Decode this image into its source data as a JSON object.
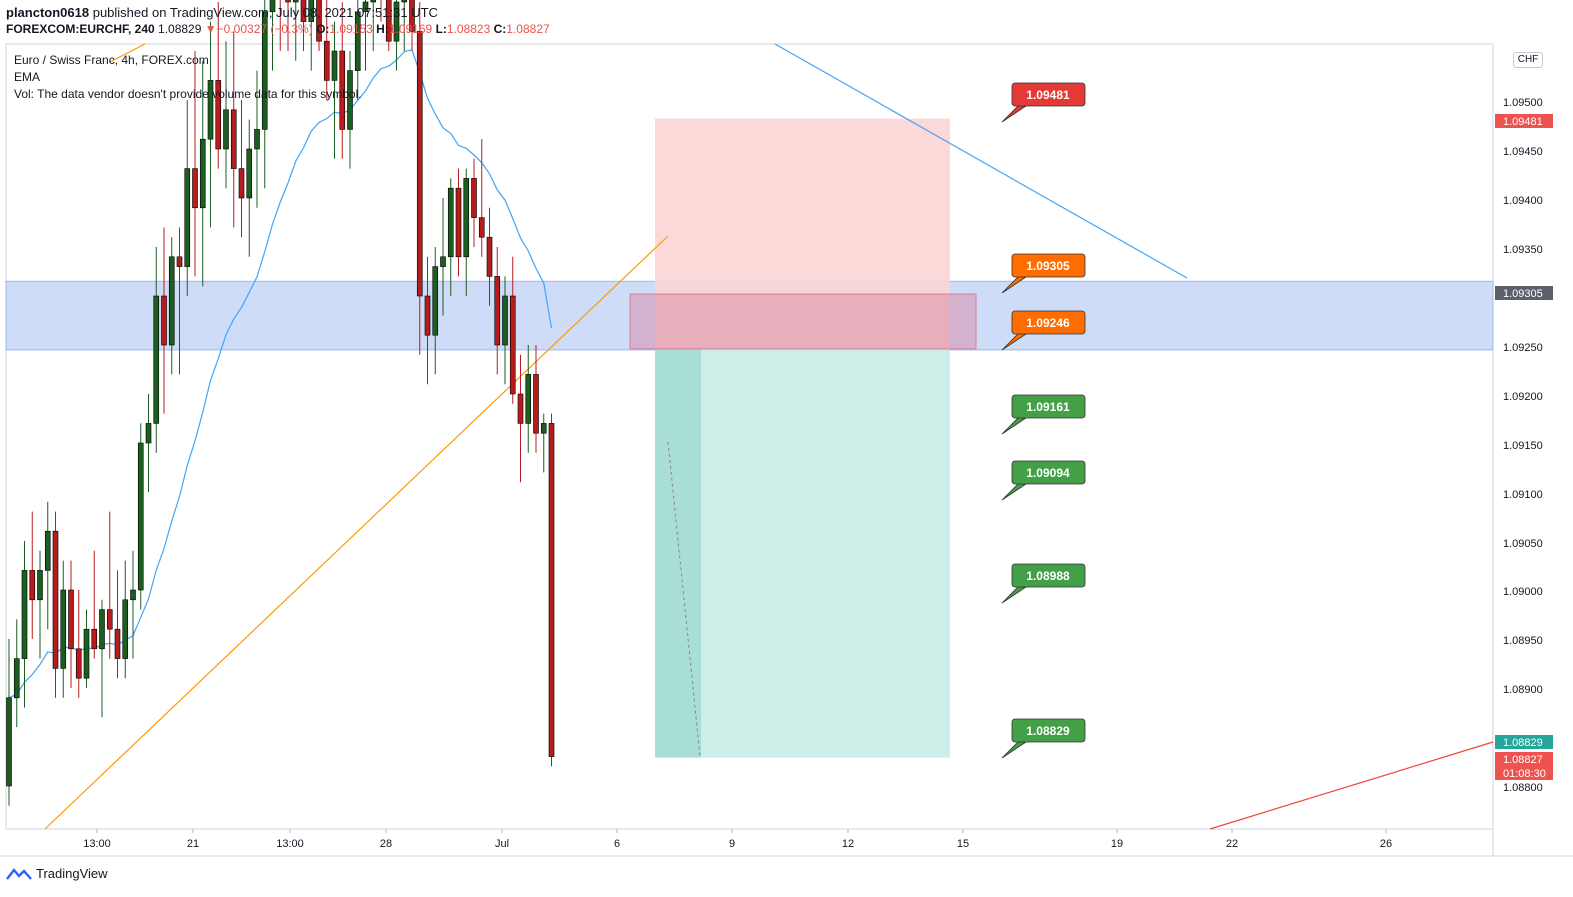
{
  "header": {
    "line1_user": "plancton0618",
    "line1_rest": "published on TradingView.com, July 08, 2021 07:51:31 UTC",
    "symbol": "FOREXCOM:EURCHF, 240",
    "last": "1.08829",
    "change_arrow": "▼",
    "change": "−0.00327 (−0.3%)",
    "o_label": "O:",
    "o_value": "1.09153",
    "h_label": "H:",
    "h_value": "1.09169",
    "l_label": "L:",
    "l_value": "1.08823",
    "c_label": "C:",
    "c_value": "1.08827"
  },
  "legend": {
    "line1": "Euro / Swiss Franc, 4h, FOREX.com",
    "line2": "EMA",
    "line3": "Vol: The data vendor doesn't provide volume data for this symbol."
  },
  "currency_button": "CHF",
  "footer": {
    "brand": "TradingView"
  },
  "colors": {
    "up": "#26a69a",
    "down": "#ef5350",
    "candle_up": "#1b5e20",
    "candle_down": "#b71c1c",
    "ema": "#42a5f5",
    "zone": "#b9cdf5",
    "stop_zone": "#fbd5d5",
    "target_zone": "#c9ebe7",
    "label_red": "#e53935",
    "label_orange": "#ff6d00",
    "label_green": "#43a047"
  },
  "chart_data": {
    "type": "candlestick",
    "title": "Euro / Swiss Franc, 4h, FOREX.com",
    "symbol": "FOREXCOM:EURCHF",
    "timeframe": "240",
    "y_ticks": [
      "1.09500",
      "1.09450",
      "1.09400",
      "1.09350",
      "1.09250",
      "1.09200",
      "1.09150",
      "1.09100",
      "1.09050",
      "1.09000",
      "1.08950",
      "1.08900",
      "1.08800"
    ],
    "x_ticks": [
      "13:00",
      "21",
      "13:00",
      "28",
      "Jul",
      "6",
      "9",
      "12",
      "15",
      "19",
      "22",
      "26"
    ],
    "ylim": [
      1.0876,
      1.0956
    ],
    "price_tags": [
      {
        "value": "1.09481",
        "color": "#ef5350"
      },
      {
        "value": "1.09305",
        "color": "#5d606b"
      },
      {
        "value": "1.08829",
        "color": "#26a69a"
      },
      {
        "value": "1.08827",
        "color": "#ef5350"
      },
      {
        "value": "01:08:30",
        "color": "#ef5350"
      }
    ],
    "price_labels": [
      {
        "value": "1.09481",
        "color": "#e53935"
      },
      {
        "value": "1.09305",
        "color": "#ff6d00"
      },
      {
        "value": "1.09246",
        "color": "#ff6d00"
      },
      {
        "value": "1.09161",
        "color": "#43a047"
      },
      {
        "value": "1.09094",
        "color": "#43a047"
      },
      {
        "value": "1.08988",
        "color": "#43a047"
      },
      {
        "value": "1.08829",
        "color": "#43a047"
      }
    ],
    "zones": [
      {
        "type": "support-resistance",
        "from": 1.09245,
        "to": 1.09315
      },
      {
        "type": "stop-loss",
        "from": 1.09246,
        "to": 1.09481
      },
      {
        "type": "take-profit",
        "from": 1.08829,
        "to": 1.09246
      }
    ],
    "series": [
      {
        "name": "EMA"
      }
    ],
    "candles": [
      [
        1.088,
        1.0895,
        1.0878,
        1.0889
      ],
      [
        1.0889,
        1.0897,
        1.0886,
        1.0893
      ],
      [
        1.0893,
        1.0905,
        1.0888,
        1.0902
      ],
      [
        1.0902,
        1.0908,
        1.0895,
        1.0899
      ],
      [
        1.0899,
        1.0904,
        1.0893,
        1.0902
      ],
      [
        1.0902,
        1.0909,
        1.0896,
        1.0906
      ],
      [
        1.0906,
        1.0908,
        1.0889,
        1.0892
      ],
      [
        1.0892,
        1.0903,
        1.0889,
        1.09
      ],
      [
        1.09,
        1.0903,
        1.089,
        1.0894
      ],
      [
        1.0894,
        1.09,
        1.0889,
        1.0891
      ],
      [
        1.0891,
        1.0898,
        1.089,
        1.0896
      ],
      [
        1.0896,
        1.0904,
        1.0893,
        1.0894
      ],
      [
        1.0894,
        1.0899,
        1.0887,
        1.0898
      ],
      [
        1.0898,
        1.0908,
        1.0893,
        1.0896
      ],
      [
        1.0896,
        1.0902,
        1.0891,
        1.0893
      ],
      [
        1.0893,
        1.0903,
        1.0891,
        1.0899
      ],
      [
        1.0899,
        1.0904,
        1.0893,
        1.09
      ],
      [
        1.09,
        1.0917,
        1.0898,
        1.0915
      ],
      [
        1.0915,
        1.092,
        1.091,
        1.0917
      ],
      [
        1.0917,
        1.0935,
        1.0914,
        1.093
      ],
      [
        1.093,
        1.0937,
        1.0918,
        1.0925
      ],
      [
        1.0925,
        1.0936,
        1.0922,
        1.0934
      ],
      [
        1.0934,
        1.0937,
        1.0922,
        1.0933
      ],
      [
        1.0933,
        1.095,
        1.093,
        1.0943
      ],
      [
        1.0943,
        1.0955,
        1.0932,
        1.0939
      ],
      [
        1.0939,
        1.0954,
        1.0931,
        1.0946
      ],
      [
        1.0946,
        1.0958,
        1.0937,
        1.0952
      ],
      [
        1.0952,
        1.096,
        1.0943,
        1.0945
      ],
      [
        1.0945,
        1.0956,
        1.0941,
        1.0949
      ],
      [
        1.0949,
        1.0957,
        1.0937,
        1.0943
      ],
      [
        1.0943,
        1.095,
        1.0936,
        1.094
      ],
      [
        1.094,
        1.0948,
        1.0934,
        1.0945
      ],
      [
        1.0945,
        1.0953,
        1.0939,
        1.0947
      ],
      [
        1.0947,
        1.0962,
        1.0941,
        1.0959
      ],
      [
        1.0959,
        1.0968,
        1.0953,
        1.0964
      ],
      [
        1.0964,
        1.0969,
        1.0955,
        1.0961
      ],
      [
        1.0961,
        1.0968,
        1.0955,
        1.096
      ],
      [
        1.096,
        1.097,
        1.0954,
        1.0965
      ],
      [
        1.0965,
        1.0968,
        1.0955,
        1.0958
      ],
      [
        1.0958,
        1.0966,
        1.0953,
        1.0963
      ],
      [
        1.0963,
        1.0968,
        1.0955,
        1.0956
      ],
      [
        1.0956,
        1.0963,
        1.095,
        1.0952
      ],
      [
        1.0952,
        1.0958,
        1.0944,
        1.0955
      ],
      [
        1.0955,
        1.096,
        1.0944,
        1.0947
      ],
      [
        1.0947,
        1.0955,
        1.0943,
        1.0953
      ],
      [
        1.0953,
        1.0962,
        1.095,
        1.0959
      ],
      [
        1.0959,
        1.0966,
        1.0953,
        1.096
      ],
      [
        1.096,
        1.0968,
        1.0955,
        1.0965
      ],
      [
        1.0965,
        1.0968,
        1.0958,
        1.0962
      ],
      [
        1.0962,
        1.0966,
        1.0955,
        1.0956
      ],
      [
        1.0956,
        1.0962,
        1.0953,
        1.096
      ],
      [
        1.096,
        1.0966,
        1.0955,
        1.0963
      ],
      [
        1.0963,
        1.0967,
        1.0955,
        1.0957
      ],
      [
        1.0957,
        1.096,
        1.0924,
        1.093
      ],
      [
        1.093,
        1.0934,
        1.0921,
        1.0926
      ],
      [
        1.0926,
        1.0935,
        1.0922,
        1.0933
      ],
      [
        1.0933,
        1.094,
        1.0928,
        1.0934
      ],
      [
        1.0934,
        1.0942,
        1.093,
        1.0941
      ],
      [
        1.0941,
        1.0943,
        1.0932,
        1.0934
      ],
      [
        1.0934,
        1.0943,
        1.093,
        1.0942
      ],
      [
        1.0942,
        1.0944,
        1.0935,
        1.0938
      ],
      [
        1.0938,
        1.0946,
        1.0934,
        1.0936
      ],
      [
        1.0936,
        1.0939,
        1.0929,
        1.0932
      ],
      [
        1.0932,
        1.0935,
        1.0922,
        1.0925
      ],
      [
        1.0925,
        1.0932,
        1.0921,
        1.093
      ],
      [
        1.093,
        1.0934,
        1.0919,
        1.092
      ],
      [
        1.092,
        1.0924,
        1.0911,
        1.0917
      ],
      [
        1.0917,
        1.0925,
        1.0914,
        1.0922
      ],
      [
        1.0922,
        1.0925,
        1.0914,
        1.0916
      ],
      [
        1.0916,
        1.0918,
        1.0912,
        1.0917
      ],
      [
        1.0917,
        1.0918,
        1.0882,
        1.0883
      ]
    ]
  }
}
